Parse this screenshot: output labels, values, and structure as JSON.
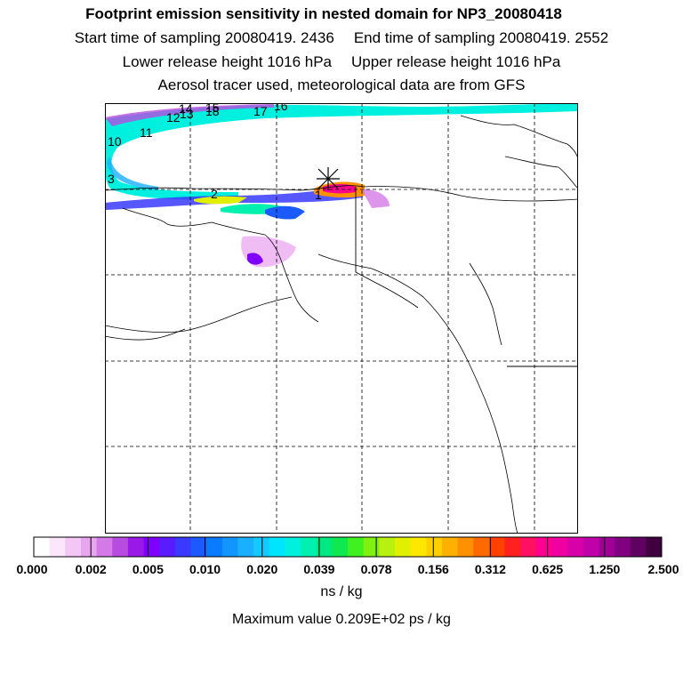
{
  "titles": {
    "main": "Footprint emission sensitivity in nested domain for NP3_20080418",
    "start": "Start time of sampling 20080419.  2436",
    "end": "End time of sampling 20080419.  2552",
    "lower": "Lower release height 1016 hPa",
    "upper": "Upper release height 1016 hPa",
    "tracer": "Aerosol tracer used, meteorological data are from GFS"
  },
  "trajectory_labels": [
    "1",
    "2",
    "3",
    "10",
    "11",
    "12",
    "13",
    "14",
    "15",
    "16",
    "17",
    "18"
  ],
  "colorbar": {
    "ticks": [
      "0.000",
      "0.002",
      "0.005",
      "0.010",
      "0.020",
      "0.039",
      "0.078",
      "0.156",
      "0.312",
      "0.625",
      "1.250",
      "2.500"
    ],
    "colors": [
      "#ffffff",
      "#fbe6fb",
      "#f3c6f5",
      "#e9a6f0",
      "#d47ae6",
      "#b84ce0",
      "#9a18e8",
      "#7f00ff",
      "#5a1bff",
      "#3a3aff",
      "#1a5aff",
      "#0a7aff",
      "#1196ff",
      "#1ab0ff",
      "#12caff",
      "#00e5ff",
      "#00f0e0",
      "#00f0b0",
      "#00e880",
      "#10e850",
      "#40f020",
      "#80f010",
      "#b8f010",
      "#e0f000",
      "#ffe800",
      "#ffd000",
      "#ffb000",
      "#ff9000",
      "#ff6a00",
      "#ff4000",
      "#ff2020",
      "#ff1060",
      "#ff0090",
      "#f000a0",
      "#d800a8",
      "#c000a8",
      "#a00098",
      "#800080",
      "#600060",
      "#400040"
    ],
    "units": "ns / kg",
    "max_value": "Maximum value  0.209E+02 ps / kg"
  }
}
